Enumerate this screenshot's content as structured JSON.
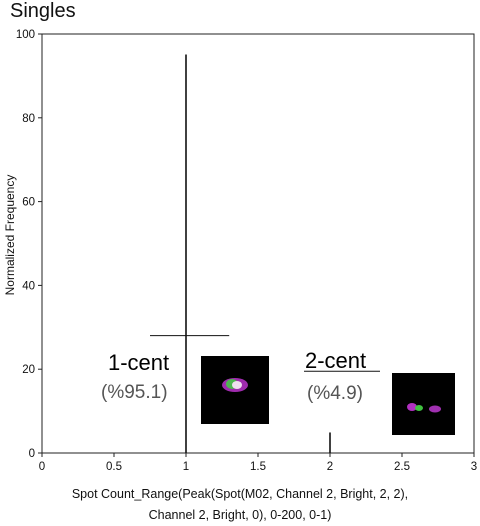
{
  "chart_data": {
    "type": "histogram",
    "title": "Singles",
    "ylabel": "Normalized Frequency",
    "xlabel_lines": [
      "Spot Count_Range(Peak(Spot(M02, Channel 2, Bright, 2, 2),",
      "Channel 2, Bright, 0), 0-200, 0-1)"
    ],
    "xlim": [
      0,
      3
    ],
    "ylim": [
      0,
      100
    ],
    "xticks": [
      "0",
      "0.5",
      "1",
      "1.5",
      "2",
      "2.5",
      "3"
    ],
    "yticks": [
      "0",
      "20",
      "40",
      "60",
      "80",
      "100"
    ],
    "bars": [
      {
        "x": 1,
        "value": 95.1
      },
      {
        "x": 2,
        "value": 4.9
      }
    ],
    "gate": {
      "y": 28,
      "x_from": 0.75,
      "x_to": 1.3
    },
    "annotations": [
      {
        "label": "1-cent",
        "percent": "(%95.1)"
      },
      {
        "label": "2-cent",
        "percent": "(%4.9)"
      }
    ]
  },
  "thumbnail_colors": {
    "magenta": "#c040d0",
    "green": "#40c040",
    "background": "#000000"
  }
}
